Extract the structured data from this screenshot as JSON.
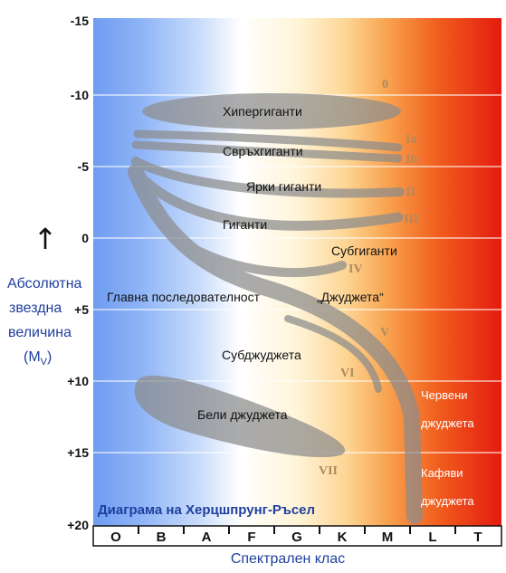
{
  "title": "Диаграма на Херцшпрунг-Ръсел",
  "x_axis": {
    "label": "Спектрален клас",
    "classes": [
      "O",
      "B",
      "A",
      "F",
      "G",
      "K",
      "M",
      "L",
      "T"
    ]
  },
  "y_axis": {
    "label_lines": [
      "Абсолютна",
      "звездна",
      "величина",
      "(M",
      "V",
      ")"
    ],
    "ticks": [
      "-15",
      "-10",
      "-5",
      "0",
      "+5",
      "+10",
      "+15",
      "+20"
    ],
    "arrow": "↑"
  },
  "regions": {
    "hypergiants": "Хипергиганти",
    "supergiants": "Свръхгиганти",
    "bright_giants": "Ярки гиганти",
    "giants": "Гиганти",
    "subgiants": "Субгиганти",
    "main_sequence": "Главна последователност",
    "dwarfs": "„Джуджета“",
    "subdwarfs": "Субджуджета",
    "white_dwarfs": "Бели джуджета",
    "red_dwarfs_1": "Червени",
    "red_dwarfs_2": "джуджета",
    "brown_dwarfs_1": "Кафяви",
    "brown_dwarfs_2": "джуджета"
  },
  "luminosity_classes": [
    "0",
    "Ia",
    "Ib",
    "II",
    "III",
    "IV",
    "V",
    "VI",
    "VII"
  ],
  "colors": {
    "title": "#1f3f9e",
    "axis_label": "#1f3f9e",
    "class_numeral": "#b08a5e",
    "band": "#8c8c8c"
  }
}
